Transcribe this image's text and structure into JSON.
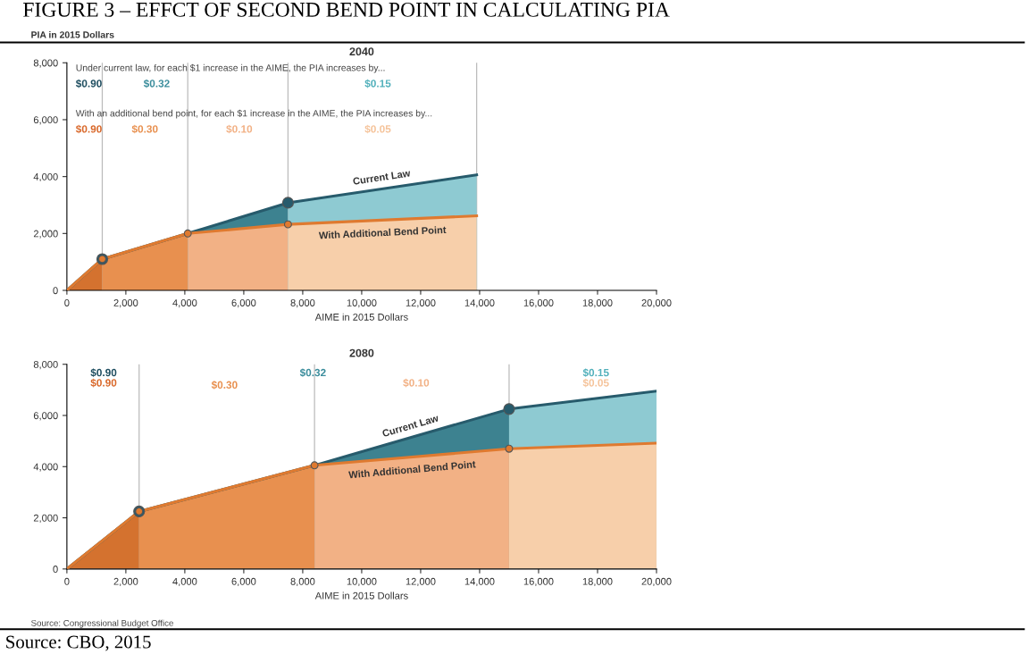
{
  "chart_data": [
    {
      "type": "area",
      "title": "2040",
      "ylabel": "PIA in 2015 Dollars",
      "xlabel": "AIME in 2015 Dollars",
      "xlim": [
        0,
        20000
      ],
      "ylim": [
        0,
        8000
      ],
      "xticks": [
        0,
        {
          "value": 2000,
          "label": "2,000"
        },
        {
          "value": 4000,
          "label": "4,000"
        },
        {
          "value": 6000,
          "label": "6,000"
        },
        {
          "value": 8000,
          "label": "8,000"
        },
        {
          "value": 10000,
          "label": "10,000"
        },
        {
          "value": 12000,
          "label": "12,000"
        },
        {
          "value": 14000,
          "label": "14,000"
        },
        {
          "value": 16000,
          "label": "16,000"
        },
        {
          "value": 18000,
          "label": "18,000"
        },
        {
          "value": 20000,
          "label": "20,000"
        }
      ],
      "yticks": [
        0,
        {
          "value": 2000,
          "label": "2,000"
        },
        {
          "value": 4000,
          "label": "4,000"
        },
        {
          "value": 6000,
          "label": "6,000"
        },
        {
          "value": 8000,
          "label": "8,000"
        }
      ],
      "grid": false,
      "legend": false,
      "series": [
        {
          "color": "#3d8290",
          "x": [
            4100,
            7500
          ],
          "values": [
            2000,
            3080
          ]
        },
        {
          "color": "#8ecad2",
          "x": [
            7500,
            13900
          ],
          "values": [
            3080,
            4060
          ]
        },
        {
          "color": "#d4722f",
          "x": [
            0,
            1200
          ],
          "values": [
            0,
            1100
          ]
        },
        {
          "color": "#e8904f",
          "x": [
            1200,
            4100
          ],
          "values": [
            1100,
            2000
          ]
        },
        {
          "color": "#f2b185",
          "x": [
            4100,
            7500
          ],
          "values": [
            2000,
            2320
          ]
        },
        {
          "color": "#f7cfaa",
          "x": [
            7500,
            13900
          ],
          "values": [
            2320,
            2620
          ]
        },
        {
          "type": "line",
          "name": "Current Law",
          "color": "#275b6c",
          "x": [
            0,
            1200,
            4100,
            7500,
            13900
          ],
          "values": [
            0,
            1100,
            2000,
            3080,
            4060
          ]
        },
        {
          "type": "line",
          "name": "With Additional Bend Point",
          "color": "#df7a30",
          "x": [
            0,
            1200,
            4100,
            7500,
            13900
          ],
          "values": [
            0,
            1100,
            2000,
            2320,
            2620
          ]
        },
        {
          "type": "scatter",
          "color": "#275b6c",
          "x": [
            1200,
            7500
          ],
          "values": [
            1100,
            3080
          ]
        },
        {
          "type": "scatter",
          "color": "#df7a30",
          "x": [
            1200,
            4100,
            7500
          ],
          "values": [
            1100,
            2000,
            2320
          ]
        }
      ],
      "ref_lines": [
        {
          "axis": "x",
          "value": 1200,
          "color": "#bbbbbb"
        },
        {
          "axis": "x",
          "value": 4100,
          "color": "#bbbbbb"
        },
        {
          "axis": "x",
          "value": 7500,
          "color": "#bbbbbb"
        },
        {
          "axis": "x",
          "value": 13900,
          "color": "#bbbbbb"
        }
      ],
      "annotations": [
        "FIGURE 3 – EFFCT OF SECOND BEND POINT IN CALCULATING PIA",
        "Under current law, for each $1 increase in the AIME, the PIA increases by...",
        "$0.90",
        "$0.32",
        "$0.15",
        "With an additional bend point, for each $1 increase in the AIME, the PIA increases by...",
        "$0.90",
        "$0.30",
        "$0.10",
        "$0.05"
      ]
    },
    {
      "type": "area",
      "title": "2080",
      "xlabel": "AIME in 2015 Dollars",
      "xlim": [
        0,
        20000
      ],
      "ylim": [
        0,
        8000
      ],
      "xticks": [
        0,
        {
          "value": 2000,
          "label": "2,000"
        },
        {
          "value": 4000,
          "label": "4,000"
        },
        {
          "value": 6000,
          "label": "6,000"
        },
        {
          "value": 8000,
          "label": "8,000"
        },
        {
          "value": 10000,
          "label": "10,000"
        },
        {
          "value": 12000,
          "label": "12,000"
        },
        {
          "value": 14000,
          "label": "14,000"
        },
        {
          "value": 16000,
          "label": "16,000"
        },
        {
          "value": 18000,
          "label": "18,000"
        },
        {
          "value": 20000,
          "label": "20,000"
        }
      ],
      "yticks": [
        0,
        {
          "value": 2000,
          "label": "2,000"
        },
        {
          "value": 4000,
          "label": "4,000"
        },
        {
          "value": 6000,
          "label": "6,000"
        },
        {
          "value": 8000,
          "label": "8,000"
        }
      ],
      "grid": false,
      "legend": false,
      "series": [
        {
          "color": "#3d8290",
          "x": [
            8400,
            15000
          ],
          "values": [
            4050,
            6250
          ]
        },
        {
          "color": "#8ecad2",
          "x": [
            15000,
            20000
          ],
          "values": [
            6250,
            6950
          ]
        },
        {
          "color": "#d4722f",
          "x": [
            0,
            2450
          ],
          "values": [
            0,
            2250
          ]
        },
        {
          "color": "#e8904f",
          "x": [
            2450,
            8400
          ],
          "values": [
            2250,
            4050
          ]
        },
        {
          "color": "#f2b185",
          "x": [
            8400,
            15000
          ],
          "values": [
            4050,
            4700
          ]
        },
        {
          "color": "#f7cfaa",
          "x": [
            15000,
            20000
          ],
          "values": [
            4700,
            4920
          ]
        },
        {
          "type": "line",
          "name": "Current Law",
          "color": "#275b6c",
          "x": [
            0,
            2450,
            8400,
            15000,
            20000
          ],
          "values": [
            0,
            2250,
            4050,
            6250,
            6950
          ]
        },
        {
          "type": "line",
          "name": "With Additional Bend Point",
          "color": "#df7a30",
          "x": [
            0,
            2450,
            8400,
            15000,
            20000
          ],
          "values": [
            0,
            2250,
            4050,
            4700,
            4920
          ]
        },
        {
          "type": "scatter",
          "color": "#275b6c",
          "x": [
            2450,
            15000
          ],
          "values": [
            2250,
            6250
          ]
        },
        {
          "type": "scatter",
          "color": "#df7a30",
          "x": [
            2450,
            8400,
            15000
          ],
          "values": [
            2250,
            4050,
            4700
          ]
        }
      ],
      "ref_lines": [
        {
          "axis": "x",
          "value": 2450,
          "color": "#bbbbbb"
        },
        {
          "axis": "x",
          "value": 8400,
          "color": "#bbbbbb"
        },
        {
          "axis": "x",
          "value": 15000,
          "color": "#bbbbbb"
        }
      ],
      "annotations": [
        "Source: Congressional Budget Office",
        "Source: CBO, 2015",
        "$0.90",
        "$0.32",
        "$0.15",
        "$0.90",
        "$0.30",
        "$0.10",
        "$0.05"
      ]
    }
  ]
}
